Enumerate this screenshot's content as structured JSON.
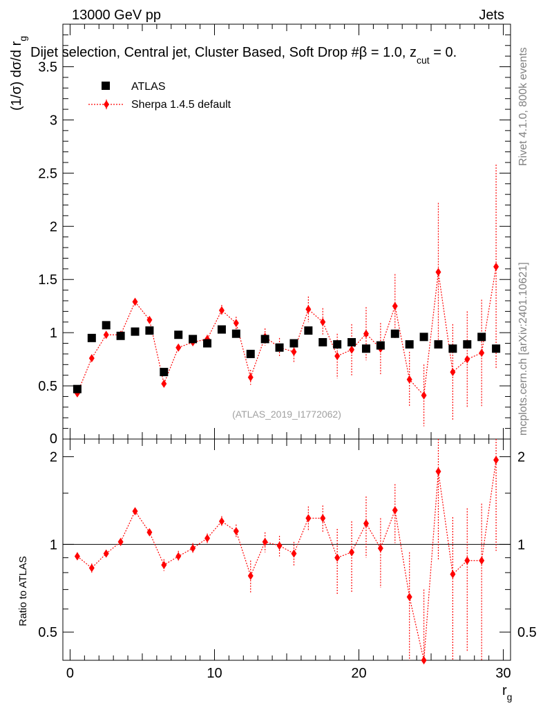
{
  "header": {
    "left": "13000 GeV pp",
    "right": "Jets",
    "subtitle": "Dijet selection, Central jet, Cluster Based, Soft Drop #β = 1.0, z",
    "subtitle_sub": "cut",
    "subtitle_tail": " = 0."
  },
  "side_labels": {
    "rivet": "Rivet 4.1.0,  800k events",
    "mcplots": "mcplots.cern.ch [arXiv:2401.10621]"
  },
  "watermark": "(ATLAS_2019_I1772062)",
  "colors": {
    "data": "#000000",
    "mc": "#ff0000"
  },
  "chart_data": [
    {
      "type": "scatter",
      "name": "main",
      "ylabel_main": "(1/σ) dσ/d r",
      "ylabel_sub": "g",
      "xlim": [
        -0.5,
        30.5
      ],
      "ylim": [
        0,
        3.9
      ],
      "yticks": [
        0.5,
        1,
        1.5,
        2,
        2.5,
        3,
        3.5
      ],
      "yticklabels": [
        "0.5",
        "1",
        "1.5",
        "2",
        "2.5",
        "3",
        "3.5"
      ],
      "ytick_zero_label": "0",
      "legend_position": "top-left",
      "legend": [
        "ATLAS",
        "Sherpa 1.4.5 default"
      ],
      "x": [
        0.5,
        1.5,
        2.5,
        3.5,
        4.5,
        5.5,
        6.5,
        7.5,
        8.5,
        9.5,
        10.5,
        11.5,
        12.5,
        13.5,
        14.5,
        15.5,
        16.5,
        17.5,
        18.5,
        19.5,
        20.5,
        21.5,
        22.5,
        23.5,
        24.5,
        25.5,
        26.5,
        27.5,
        28.5,
        29.5
      ],
      "series": [
        {
          "name": "ATLAS",
          "values": [
            0.47,
            0.95,
            1.07,
            0.97,
            1.01,
            1.02,
            0.63,
            0.98,
            0.94,
            0.9,
            1.03,
            0.99,
            0.8,
            0.94,
            0.86,
            0.9,
            1.02,
            0.91,
            0.89,
            0.91,
            0.85,
            0.88,
            0.99,
            0.89,
            0.96,
            0.89,
            0.85,
            0.89,
            0.96,
            0.85
          ]
        },
        {
          "name": "Sherpa 1.4.5 default",
          "values": [
            0.43,
            0.76,
            0.98,
            0.98,
            1.29,
            1.12,
            0.52,
            0.86,
            0.91,
            0.94,
            1.21,
            1.09,
            0.58,
            0.96,
            0.86,
            0.82,
            1.22,
            1.1,
            0.78,
            0.84,
            0.99,
            0.85,
            1.25,
            0.56,
            0.41,
            1.57,
            0.63,
            0.75,
            0.81,
            1.62
          ],
          "errors": [
            0.02,
            0.02,
            0.02,
            0.02,
            0.03,
            0.03,
            0.03,
            0.03,
            0.03,
            0.04,
            0.05,
            0.06,
            0.07,
            0.08,
            0.09,
            0.1,
            0.12,
            0.13,
            0.21,
            0.24,
            0.25,
            0.24,
            0.3,
            0.26,
            0.29,
            0.65,
            0.45,
            0.45,
            0.5,
            0.96
          ]
        }
      ]
    },
    {
      "type": "scatter",
      "name": "ratio",
      "ylabel": "Ratio to ATLAS",
      "xlabel_main": "r",
      "xlabel_sub": "g",
      "xlim": [
        -0.5,
        30.5
      ],
      "ylim": [
        0.4,
        2.3
      ],
      "yscale": "log",
      "yticks": [
        0.5,
        1,
        2
      ],
      "yticklabels": [
        "0.5",
        "1",
        "2"
      ],
      "xticks": [
        0,
        10,
        20,
        30
      ],
      "xticklabels": [
        "0",
        "10",
        "20",
        "30"
      ],
      "reference_line": 1.0,
      "x": [
        0.5,
        1.5,
        2.5,
        3.5,
        4.5,
        5.5,
        6.5,
        7.5,
        8.5,
        9.5,
        10.5,
        11.5,
        12.5,
        13.5,
        14.5,
        15.5,
        16.5,
        17.5,
        18.5,
        19.5,
        20.5,
        21.5,
        22.5,
        23.5,
        24.5,
        25.5,
        26.5,
        27.5,
        28.5,
        29.5
      ],
      "series": [
        {
          "name": "Sherpa 1.4.5 default",
          "values": [
            0.91,
            0.83,
            0.93,
            1.02,
            1.3,
            1.1,
            0.85,
            0.91,
            0.97,
            1.05,
            1.2,
            1.11,
            0.78,
            1.02,
            0.99,
            0.93,
            1.23,
            1.23,
            0.9,
            0.94,
            1.18,
            0.97,
            1.31,
            0.66,
            0.4,
            1.78,
            0.79,
            0.88,
            0.88,
            1.95
          ],
          "errors": [
            0.03,
            0.03,
            0.02,
            0.02,
            0.03,
            0.03,
            0.04,
            0.04,
            0.04,
            0.04,
            0.05,
            0.06,
            0.1,
            0.08,
            0.08,
            0.09,
            0.12,
            0.13,
            0.23,
            0.26,
            0.28,
            0.26,
            0.3,
            0.28,
            0.3,
            0.9,
            0.45,
            0.45,
            0.5,
            1.0
          ]
        }
      ]
    }
  ]
}
